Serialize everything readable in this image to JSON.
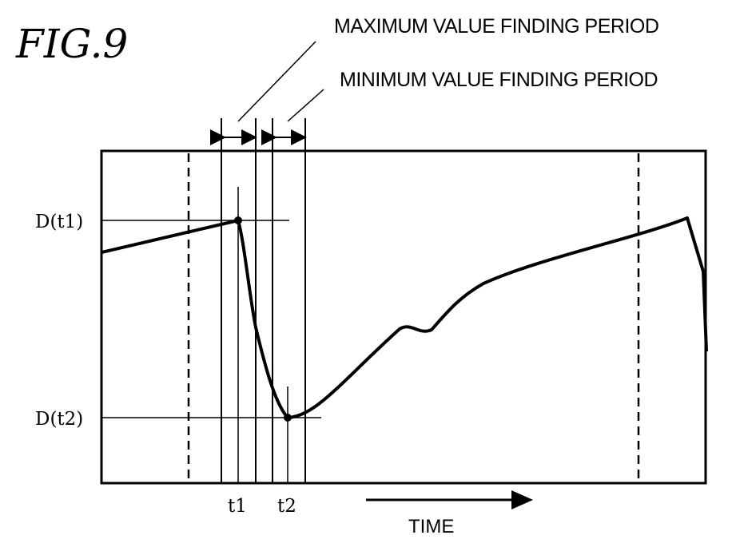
{
  "figure": {
    "title": "FIG.9"
  },
  "labels": {
    "max_period": "MAXIMUM VALUE FINDING PERIOD",
    "min_period": "MINIMUM VALUE FINDING PERIOD",
    "y_high": "D(t1)",
    "y_low": "D(t2)",
    "x_t1": "t1",
    "x_t2": "t2",
    "time": "TIME"
  },
  "colors": {
    "ink": "#000000",
    "paper": "#ffffff"
  }
}
